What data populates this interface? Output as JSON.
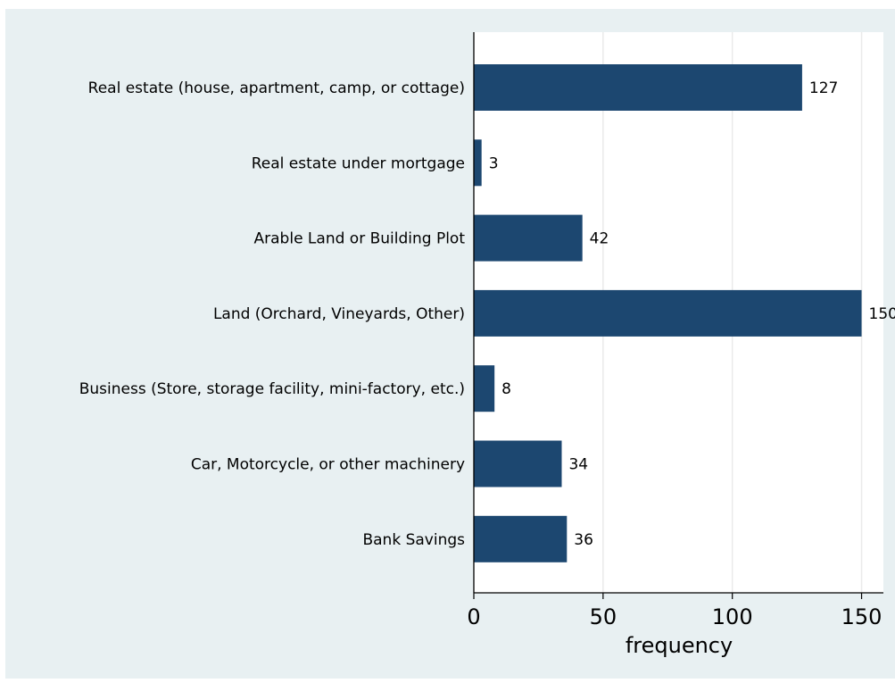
{
  "chart_data": {
    "type": "bar",
    "orientation": "horizontal",
    "categories": [
      "Real estate (house, apartment, camp, or cottage)",
      "Real estate under mortgage",
      "Arable Land or Building Plot",
      "Land (Orchard, Vineyards, Other)",
      "Business (Store, storage facility, mini-factory, etc.)",
      "Car, Motorcycle, or other machinery",
      "Bank Savings"
    ],
    "values": [
      127,
      3,
      42,
      150,
      8,
      34,
      36
    ],
    "xlabel": "frequency",
    "ylabel": "",
    "xlim": [
      0,
      160
    ],
    "xticks": [
      "0",
      "50",
      "100",
      "150"
    ],
    "grid": "vertical",
    "bar_color": "#1c4770",
    "background_color": "#e8f0f2",
    "plot_background_color": "#ffffff"
  }
}
